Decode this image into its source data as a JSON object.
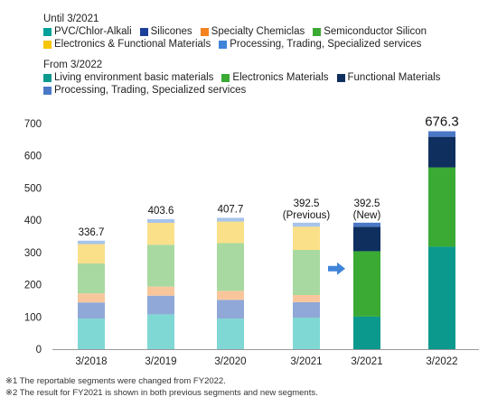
{
  "legend_old": {
    "heading": "Until 3/2021",
    "rows": [
      [
        {
          "label": "PVC/Chlor-Alkali",
          "color": "#00a19a"
        },
        {
          "label": "Silicones",
          "color": "#1d3f9c"
        },
        {
          "label": "Specialty Chemiclas",
          "color": "#f58220"
        },
        {
          "label": "Semiconductor Silicon",
          "color": "#3aaa35"
        }
      ],
      [
        {
          "label": "Electronics & Functional Materials",
          "color": "#f7c600"
        },
        {
          "label": "Processing, Trading, Specialized services",
          "color": "#3f84d8"
        }
      ]
    ]
  },
  "legend_new": {
    "heading": "From 3/2022",
    "rows": [
      [
        {
          "label": "Living environment basic materials",
          "color": "#0b998e"
        },
        {
          "label": "Electronics Materials",
          "color": "#3aaa35"
        },
        {
          "label": "Functional Materials",
          "color": "#0f2f5f"
        }
      ],
      [
        {
          "label": "Processing, Trading, Specialized services",
          "color": "#4a78c7"
        }
      ]
    ]
  },
  "chart_data": {
    "type": "bar",
    "stacked": true,
    "ylim": [
      0,
      700
    ],
    "yticks": [
      0,
      100,
      200,
      300,
      400,
      500,
      600,
      700
    ],
    "grid": false,
    "bars": [
      {
        "category": "3/2018",
        "total_label": "336.7",
        "segments": [
          {
            "value": 95,
            "color": "#7fd8d4"
          },
          {
            "value": 50,
            "color": "#90a8d8"
          },
          {
            "value": 28,
            "color": "#f9c69c"
          },
          {
            "value": 93,
            "color": "#a8d9a0"
          },
          {
            "value": 60,
            "color": "#fbe08a"
          },
          {
            "value": 10.7,
            "color": "#a7c4ea"
          }
        ]
      },
      {
        "category": "3/2019",
        "total_label": "403.6",
        "segments": [
          {
            "value": 108,
            "color": "#7fd8d4"
          },
          {
            "value": 58,
            "color": "#90a8d8"
          },
          {
            "value": 28,
            "color": "#f9c69c"
          },
          {
            "value": 130,
            "color": "#a8d9a0"
          },
          {
            "value": 68,
            "color": "#fbe08a"
          },
          {
            "value": 11.6,
            "color": "#a7c4ea"
          }
        ]
      },
      {
        "category": "3/2020",
        "total_label": "407.7",
        "segments": [
          {
            "value": 95,
            "color": "#7fd8d4"
          },
          {
            "value": 58,
            "color": "#90a8d8"
          },
          {
            "value": 28,
            "color": "#f9c69c"
          },
          {
            "value": 148,
            "color": "#a8d9a0"
          },
          {
            "value": 67,
            "color": "#fbe08a"
          },
          {
            "value": 11.7,
            "color": "#a7c4ea"
          }
        ]
      },
      {
        "category": "3/2021",
        "total_label": "392.5",
        "top_label": "(Previous)",
        "segments": [
          {
            "value": 98,
            "color": "#7fd8d4"
          },
          {
            "value": 48,
            "color": "#90a8d8"
          },
          {
            "value": 22,
            "color": "#f9c69c"
          },
          {
            "value": 140,
            "color": "#a8d9a0"
          },
          {
            "value": 72,
            "color": "#fbe08a"
          },
          {
            "value": 12.5,
            "color": "#a7c4ea"
          }
        ]
      },
      {
        "category": "3/2021",
        "total_label": "392.5",
        "top_label": "(New)",
        "segments": [
          {
            "value": 101,
            "color": "#0b998e"
          },
          {
            "value": 203,
            "color": "#3aaa35"
          },
          {
            "value": 76,
            "color": "#0f2f5f"
          },
          {
            "value": 12.5,
            "color": "#4a78c7"
          }
        ]
      },
      {
        "category": "3/2022",
        "total_label": "676.3",
        "segments": [
          {
            "value": 318,
            "color": "#0b998e"
          },
          {
            "value": 246,
            "color": "#3aaa35"
          },
          {
            "value": 95,
            "color": "#0f2f5f"
          },
          {
            "value": 17.3,
            "color": "#4a78c7"
          }
        ]
      }
    ],
    "arrow_color": "#3f84d8"
  },
  "notes": {
    "note1": "※1 The reportable segments were changed from FY2022.",
    "note2": "※2 The result for FY2021 is shown in both previous segments and new segments."
  }
}
